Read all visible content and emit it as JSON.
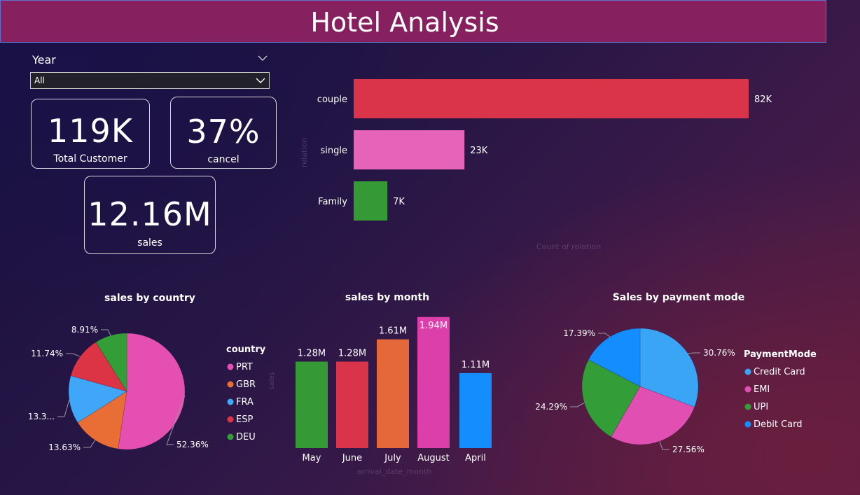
{
  "header": {
    "title": "Hotel Analysis"
  },
  "slicer": {
    "label": "Year",
    "selected": "All"
  },
  "kpis": [
    {
      "value": "119K",
      "label": "Total Customer"
    },
    {
      "value": "37%",
      "label": "cancel"
    },
    {
      "value": "12.16M",
      "label": "sales"
    }
  ],
  "colors": {
    "title_bar": "#86205f",
    "red": "#d9344a",
    "pink": "#e563b8",
    "green": "#359a36",
    "orange": "#e5683a",
    "blue": "#3aa4f5",
    "magenta": "#db3ea8",
    "darkblue": "#148dff"
  },
  "chart_data": [
    {
      "type": "bar",
      "orientation": "horizontal",
      "categories": [
        "couple",
        "single",
        "Family"
      ],
      "values": [
        82,
        23,
        7
      ],
      "data_labels": [
        "82K",
        "23K",
        "7K"
      ],
      "colors": [
        "#d9344a",
        "#e563b8",
        "#359a36"
      ],
      "ylabel": "relation",
      "xlabel": "Count of relation"
    },
    {
      "type": "pie",
      "title": "sales by country",
      "legend_title": "country",
      "legend_position": "right",
      "categories": [
        "PRT",
        "GBR",
        "FRA",
        "ESP",
        "DEU"
      ],
      "values": [
        52.36,
        13.63,
        13.36,
        11.74,
        8.91
      ],
      "data_labels": [
        "52.36%",
        "13.63%",
        "13.3...",
        "11.74%",
        "8.91%"
      ],
      "colors": [
        "#e54fb2",
        "#e86e35",
        "#40a6f7",
        "#dd3445",
        "#339e37"
      ]
    },
    {
      "type": "bar",
      "title": "sales by month",
      "categories": [
        "May",
        "June",
        "July",
        "August",
        "April"
      ],
      "values": [
        1.28,
        1.28,
        1.61,
        1.94,
        1.11
      ],
      "data_labels": [
        "1.28M",
        "1.28M",
        "1.61M",
        "1.94M",
        "1.11M"
      ],
      "colors": [
        "#359a36",
        "#d9344a",
        "#e5683a",
        "#dc3fa9",
        "#148dff"
      ],
      "ylabel": "sales",
      "xlabel": "arrival_date_month",
      "ylim": [
        0,
        2
      ]
    },
    {
      "type": "pie",
      "title": "Sales by payment mode",
      "legend_title": "PaymentMode",
      "legend_position": "right",
      "categories": [
        "Credit Card",
        "EMI",
        "UPI",
        "Debit Card"
      ],
      "values": [
        30.76,
        27.56,
        24.29,
        17.39
      ],
      "data_labels": [
        "30.76%",
        "27.56%",
        "24.29%",
        "17.39%"
      ],
      "colors": [
        "#3aa4f5",
        "#e14fb2",
        "#339e37",
        "#148dff"
      ]
    }
  ]
}
